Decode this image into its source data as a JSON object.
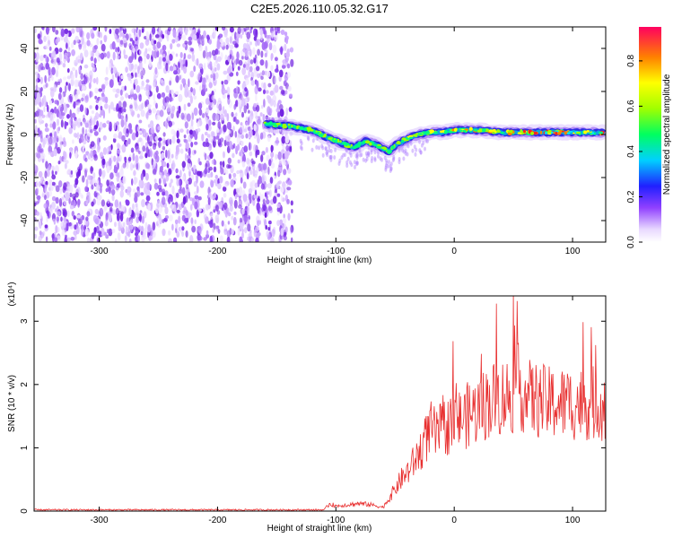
{
  "title": "C2E5.2026.110.05.32.G17",
  "chart_data": [
    {
      "type": "heatmap",
      "xlabel": "Height of straight line (km)",
      "ylabel": "Frequency (Hz)",
      "xlim": [
        -355,
        128
      ],
      "ylim": [
        -50,
        50
      ],
      "x_ticks": [
        -300,
        -200,
        -100,
        0,
        100
      ],
      "y_ticks": [
        -40,
        -20,
        0,
        20,
        40
      ],
      "noise_region": [
        -355,
        -137
      ],
      "signal_track": {
        "x": [
          -160,
          -140,
          -120,
          -105,
          -95,
          -85,
          -75,
          -65,
          -55,
          -50,
          -40,
          -30,
          -20,
          -10,
          0,
          20,
          40,
          60,
          80,
          100,
          128
        ],
        "y": [
          5,
          4,
          2,
          -2,
          -4,
          -6,
          -3,
          -5,
          -8,
          -5,
          -2,
          0,
          1,
          1,
          2,
          2,
          1,
          1,
          1,
          1,
          1
        ]
      },
      "colorbar": {
        "label": "Normalized spectral amplitude",
        "range": [
          0,
          0.95
        ],
        "ticks": [
          0.0,
          0.2,
          0.4,
          0.6,
          0.8
        ]
      }
    },
    {
      "type": "line",
      "xlabel": "Height of straight line (km)",
      "ylabel": "SNR (10 * v/v)",
      "y_multiplier": "(x10⁴)",
      "xlim": [
        -355,
        128
      ],
      "ylim": [
        0,
        3.4
      ],
      "x_ticks": [
        -300,
        -200,
        -100,
        0,
        100
      ],
      "y_ticks": [
        0,
        1,
        2,
        3
      ],
      "series": [
        {
          "name": "SNR",
          "color": "#e83030",
          "x": [
            -355,
            -110,
            -105,
            -100,
            -90,
            -80,
            -70,
            -60,
            -50,
            -45,
            -40,
            -30,
            -25,
            -20,
            -15,
            -10,
            0,
            10,
            20,
            30,
            40,
            50,
            55,
            60,
            70,
            80,
            90,
            100,
            110,
            128
          ],
          "y": [
            0.02,
            0.02,
            0.12,
            0.08,
            0.1,
            0.12,
            0.1,
            0.06,
            0.35,
            0.5,
            0.6,
            0.9,
            1.1,
            1.3,
            1.2,
            1.3,
            1.4,
            1.5,
            1.6,
            1.75,
            1.8,
            1.85,
            2.0,
            1.8,
            1.75,
            1.7,
            1.7,
            1.7,
            1.7,
            1.7
          ]
        }
      ]
    }
  ]
}
